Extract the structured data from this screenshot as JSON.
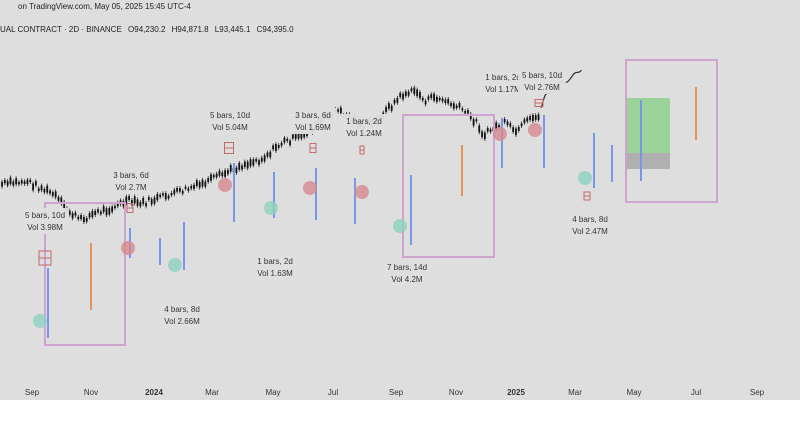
{
  "header": {
    "source": "on TradingView.com, May 05, 2025 15:45 UTC-4",
    "symbol": "UAL CONTRACT · 2D · BINANCE",
    "open": "O94,230.2",
    "high": "H94,871.8",
    "low": "L93,445.1",
    "close": "C94,395.0"
  },
  "colors": {
    "background": "#dedede",
    "bottom_band": "#ffffff",
    "candle": "#111111",
    "box_border": "#cfa3cf",
    "pivot_high": "#d4898f",
    "pivot_low": "#8dd1be",
    "vol_line": "#7a96e8",
    "orange_line": "#e6935a",
    "bars_marker": "#c46a6a",
    "forecast_up": "#8fd18f",
    "forecast_down": "#a8a8a8"
  },
  "chart_data": {
    "type": "line",
    "x_axis_ticks": [
      {
        "label": "Sep",
        "bold": false
      },
      {
        "label": "Nov",
        "bold": false
      },
      {
        "label": "2024",
        "bold": true
      },
      {
        "label": "Mar",
        "bold": false
      },
      {
        "label": "May",
        "bold": false
      },
      {
        "label": "Jul",
        "bold": false
      },
      {
        "label": "Sep",
        "bold": false
      },
      {
        "label": "Nov",
        "bold": false
      },
      {
        "label": "2025",
        "bold": true
      },
      {
        "label": "Mar",
        "bold": false
      },
      {
        "label": "May",
        "bold": false
      },
      {
        "label": "Jul",
        "bold": false
      },
      {
        "label": "Sep",
        "bold": false
      }
    ],
    "price_path": [
      [
        0,
        0.53
      ],
      [
        4,
        0.52
      ],
      [
        8,
        0.56
      ],
      [
        10,
        0.61
      ],
      [
        12,
        0.64
      ],
      [
        14,
        0.62
      ],
      [
        17,
        0.6
      ],
      [
        19,
        0.58
      ],
      [
        21,
        0.59
      ],
      [
        24,
        0.57
      ],
      [
        27,
        0.55
      ],
      [
        30,
        0.53
      ],
      [
        33,
        0.5
      ],
      [
        36,
        0.47
      ],
      [
        39,
        0.45
      ],
      [
        42,
        0.4
      ],
      [
        45,
        0.38
      ],
      [
        48,
        0.33
      ],
      [
        50,
        0.3
      ],
      [
        52,
        0.32
      ],
      [
        54,
        0.35
      ],
      [
        56,
        0.33
      ],
      [
        58,
        0.29
      ],
      [
        60,
        0.25
      ],
      [
        62,
        0.24
      ],
      [
        63,
        0.27
      ],
      [
        65,
        0.26
      ],
      [
        67,
        0.28
      ],
      [
        69,
        0.3
      ],
      [
        71,
        0.34
      ],
      [
        72,
        0.38
      ],
      [
        73,
        0.36
      ],
      [
        75,
        0.34
      ],
      [
        77,
        0.37
      ],
      [
        78,
        0.34
      ],
      [
        80,
        0.32
      ],
      [
        81,
        0.26
      ],
      [
        83,
        0.22
      ],
      [
        85,
        0.2
      ],
      [
        87,
        0.16
      ],
      [
        89,
        0.14
      ],
      [
        90,
        0.12
      ],
      [
        92,
        0.1
      ],
      [
        94,
        0.06
      ]
    ],
    "annotations": [
      {
        "bars": "5 bars, 10d",
        "vol": "Vol 3.98M"
      },
      {
        "bars": "3 bars, 6d",
        "vol": "Vol 2.7M"
      },
      {
        "bars": "4 bars, 8d",
        "vol": "Vol 2.66M"
      },
      {
        "bars": "5 bars, 10d",
        "vol": "Vol 5.04M"
      },
      {
        "bars": "1 bars, 2d",
        "vol": "Vol 1.63M"
      },
      {
        "bars": "3 bars, 6d",
        "vol": "Vol 1.69M"
      },
      {
        "bars": "1 bars, 2d",
        "vol": "Vol 1.24M"
      },
      {
        "bars": "7 bars, 14d",
        "vol": "Vol 4.2M"
      },
      {
        "bars": "1 bars, 2d",
        "vol": "Vol 1.17M"
      },
      {
        "bars": "5 bars, 10d",
        "vol": "Vol 2.76M"
      },
      {
        "bars": "4 bars, 8d",
        "vol": "Vol 2.47M"
      }
    ],
    "grid": false,
    "legend": "none"
  }
}
